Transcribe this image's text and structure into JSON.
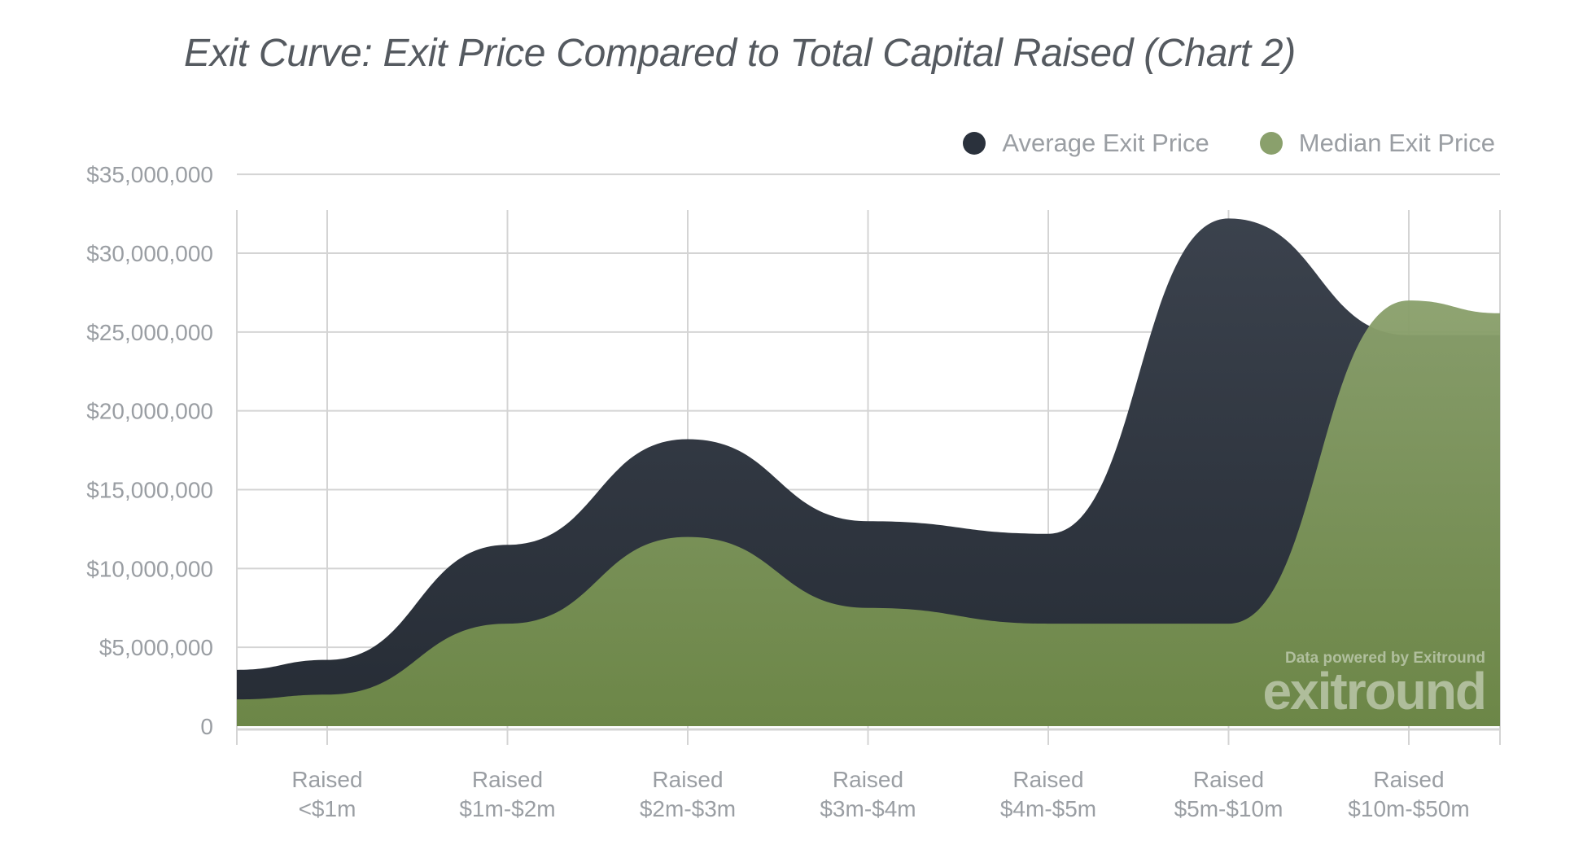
{
  "chart_data": {
    "type": "area",
    "title": "Exit Curve: Exit Price Compared to Total Capital Raised (Chart 2)",
    "categories": [
      [
        "Raised",
        "<$1m"
      ],
      [
        "Raised",
        "$1m-$2m"
      ],
      [
        "Raised",
        "$2m-$3m"
      ],
      [
        "Raised",
        "$3m-$4m"
      ],
      [
        "Raised",
        "$4m-$5m"
      ],
      [
        "Raised",
        "$5m-$10m"
      ],
      [
        "Raised",
        "$10m-$50m"
      ]
    ],
    "series": [
      {
        "name": "Average Exit Price",
        "color": "#2a313c",
        "values": [
          4200000,
          11500000,
          18200000,
          13000000,
          12200000,
          32200000,
          24800000
        ]
      },
      {
        "name": "Median Exit Price",
        "color": "#7a9157",
        "values": [
          2000000,
          6500000,
          12000000,
          7500000,
          6500000,
          6500000,
          27000000
        ]
      }
    ],
    "yticks": [
      "$35,000,000",
      "$30,000,000",
      "$25,000,000",
      "$20,000,000",
      "$15,000,000",
      "$10,000,000",
      "$5,000,000",
      "0"
    ],
    "ylim": [
      0,
      35000000
    ],
    "grid": true,
    "legend_position": "top-right",
    "watermark": {
      "line1": "Data powered by Exitround",
      "line2": "exitround"
    }
  }
}
